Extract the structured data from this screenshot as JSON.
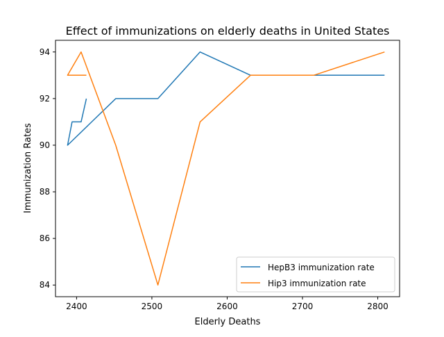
{
  "chart_data": {
    "type": "line",
    "title": "Effect of immunizations on elderly deaths in United States",
    "xlabel": "Elderly Deaths",
    "ylabel": "Immunization Rates",
    "xlim": [
      2372,
      2829
    ],
    "ylim": [
      83.5,
      94.5
    ],
    "xticks": [
      2400,
      2500,
      2600,
      2700,
      2800
    ],
    "yticks": [
      84,
      86,
      88,
      90,
      92,
      94
    ],
    "grid": false,
    "legend_position": "lower-right",
    "series": [
      {
        "name": "HepB3 immunization rate",
        "color": "#1f77b4",
        "x": [
          2413,
          2406,
          2394,
          2388,
          2452,
          2508,
          2564,
          2631,
          2715,
          2809
        ],
        "y": [
          92,
          91,
          91,
          90,
          92,
          92,
          94,
          93,
          93,
          93
        ]
      },
      {
        "name": "Hip3 immunization rate",
        "color": "#ff7f0e",
        "x": [
          2413,
          2388,
          2406,
          2452,
          2508,
          2564,
          2631,
          2715,
          2809
        ],
        "y": [
          93,
          93,
          94,
          90,
          84,
          91,
          93,
          93,
          94
        ]
      }
    ]
  }
}
